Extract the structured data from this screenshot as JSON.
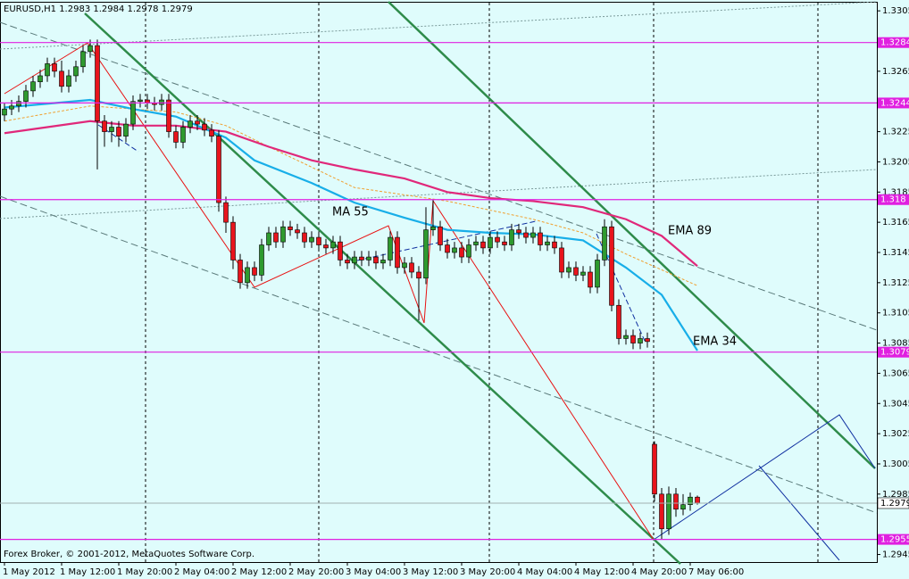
{
  "chart_data": {
    "type": "candlestick",
    "title": "EURUSD,H1  1.2983 1.2984 1.2978 1.2979",
    "footer": "Forex Broker, © 2001-2012, MetaQuotes Software Corp.",
    "categories": [
      "1 May 2012",
      null,
      null,
      null,
      null,
      null,
      null,
      null,
      "1 May 12:00",
      null,
      null,
      null,
      null,
      null,
      null,
      null,
      "1 May 20:00",
      null,
      null,
      null,
      null,
      null,
      null,
      null,
      "2 May 04:00",
      null,
      null,
      null,
      null,
      null,
      null,
      null,
      "2 May 12:00",
      null,
      null,
      null,
      null,
      null,
      null,
      null,
      "2 May 20:00",
      null,
      null,
      null,
      null,
      null,
      null,
      null,
      "3 May 04:00",
      null,
      null,
      null,
      null,
      null,
      null,
      null,
      "3 May 12:00",
      null,
      null,
      null,
      null,
      null,
      null,
      null,
      "3 May 20:00",
      null,
      null,
      null,
      null,
      null,
      null,
      null,
      "4 May 04:00",
      null,
      null,
      null,
      null,
      null,
      null,
      null,
      "4 May 12:00",
      null,
      null,
      null,
      null,
      null,
      null,
      null,
      "4 May 20:00",
      null,
      null,
      null,
      null,
      null,
      null,
      null,
      "7 May 06:00",
      null
    ],
    "candles": [
      [
        1.3236,
        1.3244,
        1.3232,
        1.324
      ],
      [
        1.324,
        1.3246,
        1.3236,
        1.3242
      ],
      [
        1.3242,
        1.3249,
        1.3238,
        1.3245
      ],
      [
        1.3245,
        1.3256,
        1.3241,
        1.3252
      ],
      [
        1.3252,
        1.3262,
        1.3248,
        1.3258
      ],
      [
        1.3258,
        1.3266,
        1.3254,
        1.3262
      ],
      [
        1.3262,
        1.3274,
        1.3258,
        1.327
      ],
      [
        1.327,
        1.3274,
        1.3261,
        1.3265
      ],
      [
        1.3265,
        1.3272,
        1.3251,
        1.3255
      ],
      [
        1.3255,
        1.3266,
        1.3251,
        1.3262
      ],
      [
        1.3262,
        1.3272,
        1.3258,
        1.3268
      ],
      [
        1.3268,
        1.3282,
        1.3264,
        1.3278
      ],
      [
        1.3278,
        1.3286,
        1.3274,
        1.3282
      ],
      [
        1.3282,
        1.3286,
        1.32,
        1.3232
      ],
      [
        1.3232,
        1.3236,
        1.3215,
        1.3225
      ],
      [
        1.3225,
        1.3232,
        1.3218,
        1.3228
      ],
      [
        1.3228,
        1.3232,
        1.3215,
        1.3222
      ],
      [
        1.3222,
        1.3234,
        1.3218,
        1.323
      ],
      [
        1.323,
        1.3249,
        1.3226,
        1.3245
      ],
      [
        1.3245,
        1.325,
        1.3241,
        1.3246
      ],
      [
        1.3246,
        1.325,
        1.324,
        1.3244
      ],
      [
        1.3244,
        1.3248,
        1.3239,
        1.3243
      ],
      [
        1.3243,
        1.325,
        1.3239,
        1.3246
      ],
      [
        1.3246,
        1.325,
        1.3221,
        1.3225
      ],
      [
        1.3225,
        1.3229,
        1.3214,
        1.3218
      ],
      [
        1.3218,
        1.3232,
        1.3214,
        1.3228
      ],
      [
        1.3228,
        1.3236,
        1.3224,
        1.3232
      ],
      [
        1.3232,
        1.3236,
        1.3226,
        1.323
      ],
      [
        1.323,
        1.3234,
        1.3222,
        1.3226
      ],
      [
        1.3226,
        1.323,
        1.3218,
        1.3222
      ],
      [
        1.3222,
        1.3226,
        1.3172,
        1.3178
      ],
      [
        1.3178,
        1.3182,
        1.3158,
        1.3165
      ],
      [
        1.3165,
        1.3169,
        1.3134,
        1.314
      ],
      [
        1.314,
        1.3144,
        1.3121,
        1.3125
      ],
      [
        1.3125,
        1.3139,
        1.3121,
        1.3135
      ],
      [
        1.3135,
        1.3139,
        1.3126,
        1.313
      ],
      [
        1.313,
        1.3154,
        1.3126,
        1.315
      ],
      [
        1.315,
        1.3162,
        1.3146,
        1.3158
      ],
      [
        1.3158,
        1.3162,
        1.3148,
        1.3152
      ],
      [
        1.3152,
        1.3166,
        1.3148,
        1.3162
      ],
      [
        1.3162,
        1.3166,
        1.3156,
        1.316
      ],
      [
        1.316,
        1.3164,
        1.3154,
        1.3158
      ],
      [
        1.3158,
        1.3162,
        1.3148,
        1.3152
      ],
      [
        1.3152,
        1.3159,
        1.3148,
        1.3155
      ],
      [
        1.3155,
        1.3159,
        1.3146,
        1.315
      ],
      [
        1.315,
        1.3154,
        1.3144,
        1.3148
      ],
      [
        1.3148,
        1.3156,
        1.3144,
        1.3152
      ],
      [
        1.3152,
        1.3156,
        1.3136,
        1.314
      ],
      [
        1.314,
        1.3144,
        1.3134,
        1.3138
      ],
      [
        1.3138,
        1.3146,
        1.3134,
        1.3142
      ],
      [
        1.3142,
        1.3146,
        1.3136,
        1.314
      ],
      [
        1.314,
        1.3146,
        1.3136,
        1.3142
      ],
      [
        1.3142,
        1.3146,
        1.3134,
        1.3138
      ],
      [
        1.3138,
        1.3144,
        1.3134,
        1.314
      ],
      [
        1.314,
        1.3159,
        1.3136,
        1.3155
      ],
      [
        1.3155,
        1.3159,
        1.3131,
        1.3135
      ],
      [
        1.3135,
        1.3142,
        1.3131,
        1.3138
      ],
      [
        1.3138,
        1.3142,
        1.3128,
        1.3132
      ],
      [
        1.3132,
        1.3136,
        1.31,
        1.3128
      ],
      [
        1.3128,
        1.3175,
        1.3124,
        1.316
      ],
      [
        1.316,
        1.318,
        1.3156,
        1.3162
      ],
      [
        1.3162,
        1.3166,
        1.3146,
        1.315
      ],
      [
        1.315,
        1.3154,
        1.3141,
        1.3145
      ],
      [
        1.3145,
        1.3152,
        1.3141,
        1.3148
      ],
      [
        1.3148,
        1.3152,
        1.3138,
        1.3142
      ],
      [
        1.3142,
        1.3154,
        1.3138,
        1.315
      ],
      [
        1.315,
        1.3156,
        1.3146,
        1.3152
      ],
      [
        1.3152,
        1.3156,
        1.3144,
        1.3148
      ],
      [
        1.3148,
        1.3159,
        1.3144,
        1.3155
      ],
      [
        1.3155,
        1.3159,
        1.3148,
        1.3152
      ],
      [
        1.3152,
        1.3156,
        1.3146,
        1.315
      ],
      [
        1.315,
        1.3164,
        1.3146,
        1.316
      ],
      [
        1.316,
        1.3164,
        1.3154,
        1.3158
      ],
      [
        1.3158,
        1.3162,
        1.3151,
        1.3155
      ],
      [
        1.3155,
        1.3162,
        1.3151,
        1.3158
      ],
      [
        1.3158,
        1.3162,
        1.3146,
        1.315
      ],
      [
        1.315,
        1.3156,
        1.3146,
        1.3152
      ],
      [
        1.3152,
        1.3156,
        1.3144,
        1.3148
      ],
      [
        1.3148,
        1.3152,
        1.3128,
        1.3132
      ],
      [
        1.3132,
        1.3139,
        1.3128,
        1.3135
      ],
      [
        1.3135,
        1.3139,
        1.3126,
        1.313
      ],
      [
        1.313,
        1.3136,
        1.3126,
        1.3132
      ],
      [
        1.3132,
        1.3136,
        1.3118,
        1.3122
      ],
      [
        1.3122,
        1.3144,
        1.3118,
        1.314
      ],
      [
        1.314,
        1.3167,
        1.3136,
        1.3162
      ],
      [
        1.3162,
        1.3166,
        1.3106,
        1.311
      ],
      [
        1.311,
        1.3114,
        1.3084,
        1.3088
      ],
      [
        1.3088,
        1.3094,
        1.3084,
        1.309
      ],
      [
        1.309,
        1.3094,
        1.3081,
        1.3085
      ],
      [
        1.3085,
        1.3092,
        1.3081,
        1.3088
      ],
      [
        1.3088,
        1.3092,
        1.3082,
        1.3086
      ],
      [
        1.3018,
        1.302,
        1.298,
        1.2985
      ],
      [
        1.2985,
        1.2989,
        1.2955,
        1.2962
      ],
      [
        1.2962,
        1.299,
        1.2958,
        1.2985
      ],
      [
        1.2985,
        1.2989,
        1.297,
        1.2975
      ],
      [
        1.2975,
        1.2985,
        1.2971,
        1.2978
      ],
      [
        1.2978,
        1.2986,
        1.2974,
        1.2983
      ],
      [
        1.2983,
        1.2984,
        1.2978,
        1.2979
      ]
    ],
    "up_color": "#2e9a2e",
    "down_color": "#e8141c",
    "overlays": [
      {
        "name": "MA 55",
        "color": "#f0a030",
        "x": [
          0,
          12,
          24,
          31,
          37,
          49,
          62,
          74,
          81,
          87,
          97
        ],
        "values": [
          1.3232,
          1.3242,
          1.3238,
          1.3229,
          1.3215,
          1.3188,
          1.3179,
          1.3167,
          1.3158,
          1.3144,
          1.3123
        ]
      },
      {
        "name": "EMA 89",
        "color": "#e0287a",
        "x": [
          0,
          6,
          12,
          18,
          24,
          31,
          37,
          43,
          49,
          56,
          62,
          68,
          74,
          81,
          87,
          92,
          97
        ],
        "values": [
          1.3224,
          1.3228,
          1.3232,
          1.3229,
          1.3229,
          1.3225,
          1.3215,
          1.3206,
          1.32,
          1.3194,
          1.3185,
          1.3181,
          1.3179,
          1.3175,
          1.3167,
          1.3156,
          1.3136
        ]
      },
      {
        "name": "EMA 34",
        "color": "#18aee8",
        "x": [
          0,
          12,
          18,
          24,
          31,
          35,
          43,
          49,
          56,
          62,
          68,
          74,
          81,
          87,
          92,
          97
        ],
        "values": [
          1.3241,
          1.3246,
          1.324,
          1.3235,
          1.3221,
          1.3206,
          1.3191,
          1.3178,
          1.3168,
          1.316,
          1.3158,
          1.3157,
          1.3153,
          1.3135,
          1.3117,
          1.308
        ]
      }
    ],
    "levels": [
      1.3284,
      1.3244,
      1.318,
      1.3079,
      1.2955
    ],
    "level_color": "#e020e0",
    "current_price": 1.2979,
    "ylim": [
      1.294,
      1.3311
    ],
    "yticks": [
      1.3305,
      1.3265,
      1.3225,
      1.3205,
      1.3185,
      1.3165,
      1.3145,
      1.3125,
      1.3105,
      1.3085,
      1.3065,
      1.3045,
      1.3025,
      1.3005,
      1.2985,
      1.2945
    ]
  }
}
